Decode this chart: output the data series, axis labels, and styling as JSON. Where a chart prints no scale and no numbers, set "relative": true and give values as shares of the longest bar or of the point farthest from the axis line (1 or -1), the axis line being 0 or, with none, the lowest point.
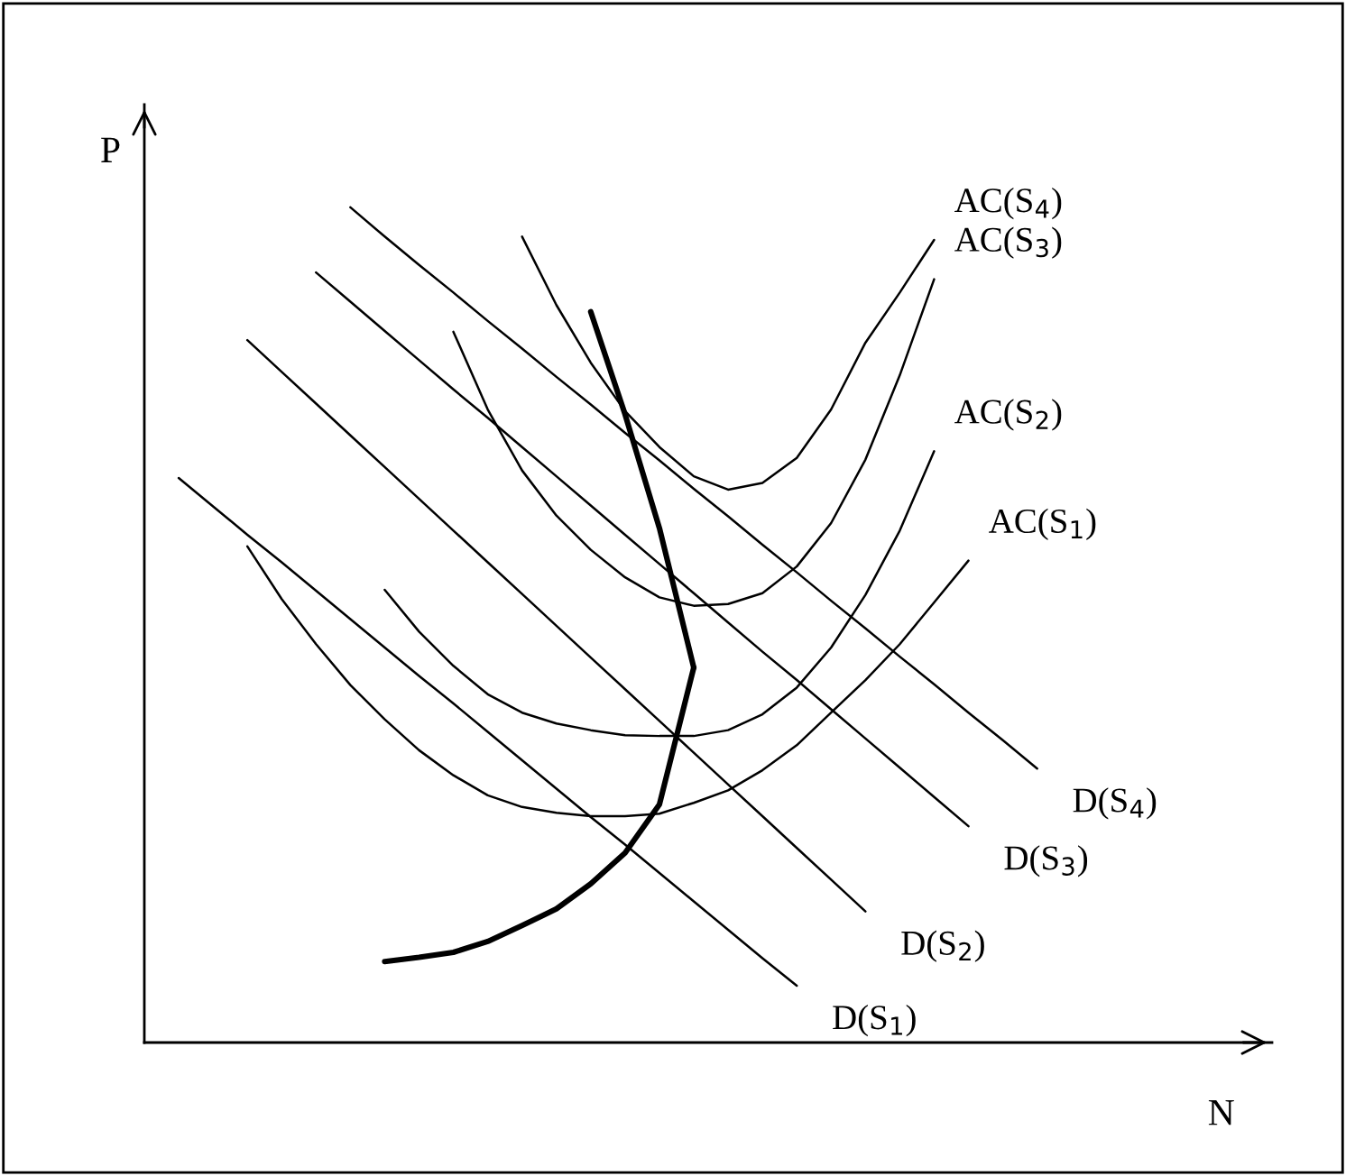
{
  "chart_data": {
    "type": "line",
    "relative": true,
    "xlabel": "N",
    "ylabel": "P",
    "tick_labels": false,
    "marker": "none",
    "line_style": "solid",
    "categories": [
      null,
      null,
      null,
      null,
      null,
      null,
      null,
      null,
      null,
      null,
      null,
      null,
      null,
      null,
      null,
      null,
      null,
      null,
      null,
      null,
      null,
      null,
      null,
      null,
      null,
      null
    ],
    "series": [
      {
        "name": "D(S$_{1}$)",
        "color": "#000000",
        "values": [
          0.676,
          0.642,
          0.608,
          0.575,
          0.541,
          0.507,
          0.473,
          0.439,
          0.406,
          0.372,
          0.338,
          0.304,
          0.27,
          0.237,
          0.203,
          0.169,
          0.135,
          0.101,
          0.068,
          null,
          null,
          null,
          null,
          null,
          null,
          null
        ]
      },
      {
        "name": "D(S$_{2}$)",
        "color": "#000000",
        "values": [
          null,
          null,
          0.841,
          0.803,
          0.765,
          0.727,
          0.689,
          0.651,
          0.613,
          0.575,
          0.537,
          0.499,
          0.461,
          0.423,
          0.385,
          0.347,
          0.309,
          0.271,
          0.233,
          0.195,
          0.157,
          null,
          null,
          null,
          null,
          null
        ]
      },
      {
        "name": "D(S$_{3}$)",
        "color": "#000000",
        "values": [
          null,
          null,
          null,
          null,
          0.922,
          0.887,
          0.852,
          0.817,
          0.782,
          0.748,
          0.713,
          0.678,
          0.643,
          0.608,
          0.573,
          0.538,
          0.503,
          0.468,
          0.434,
          0.399,
          0.364,
          0.329,
          0.294,
          0.259,
          null,
          null
        ]
      },
      {
        "name": "D(S$_{4}$)",
        "color": "#000000",
        "values": [
          null,
          null,
          null,
          null,
          null,
          1.0,
          0.965,
          0.931,
          0.898,
          0.864,
          0.831,
          0.797,
          0.764,
          0.73,
          0.697,
          0.663,
          0.63,
          0.596,
          0.563,
          0.529,
          0.496,
          0.462,
          0.429,
          0.395,
          0.362,
          0.328
        ]
      },
      {
        "name": "AC(S$_{1}$)",
        "color": "#000000",
        "values": [
          null,
          null,
          0.594,
          0.531,
          0.477,
          0.428,
          0.387,
          0.35,
          0.32,
          0.296,
          0.282,
          0.275,
          0.271,
          0.271,
          0.274,
          0.287,
          0.302,
          0.326,
          0.356,
          0.395,
          0.434,
          0.477,
          0.527,
          0.577,
          null,
          null
        ]
      },
      {
        "name": "AC(S$_{2}$)",
        "color": "#000000",
        "values": [
          null,
          null,
          null,
          null,
          null,
          null,
          0.542,
          0.492,
          0.451,
          0.417,
          0.395,
          0.382,
          0.374,
          0.368,
          0.367,
          0.367,
          0.374,
          0.393,
          0.425,
          0.473,
          0.536,
          0.613,
          0.708,
          null,
          null,
          null
        ]
      },
      {
        "name": "AC(S$_{3}$)",
        "color": "#000000",
        "values": [
          null,
          null,
          null,
          null,
          null,
          null,
          null,
          null,
          0.851,
          0.758,
          0.685,
          0.631,
          0.59,
          0.557,
          0.533,
          0.523,
          0.525,
          0.538,
          0.57,
          0.622,
          0.698,
          0.799,
          0.914,
          null,
          null,
          null
        ]
      },
      {
        "name": "AC(S$_{4}$)",
        "color": "#000000",
        "values": [
          null,
          null,
          null,
          null,
          null,
          null,
          null,
          null,
          null,
          null,
          0.965,
          0.883,
          0.814,
          0.756,
          0.713,
          0.678,
          0.662,
          0.67,
          0.7,
          0.758,
          0.838,
          0.898,
          0.961,
          null,
          null,
          null
        ]
      },
      {
        "color": "#000000",
        "values": [
          null,
          null,
          null,
          null,
          null,
          null,
          0.097,
          0.102,
          0.108,
          0.121,
          0.14,
          0.16,
          0.19,
          0.227,
          0.285,
          0.449,
          null,
          null,
          null,
          null,
          null,
          null,
          null,
          null,
          null,
          null
        ]
      },
      {
        "color": "#000000",
        "values": [
          null,
          null,
          null,
          null,
          null,
          null,
          null,
          null,
          null,
          null,
          null,
          null,
          0.875,
          0.752,
          0.616,
          0.449,
          null,
          null,
          null,
          null,
          null,
          null,
          null,
          null,
          null,
          null
        ]
      }
    ]
  }
}
